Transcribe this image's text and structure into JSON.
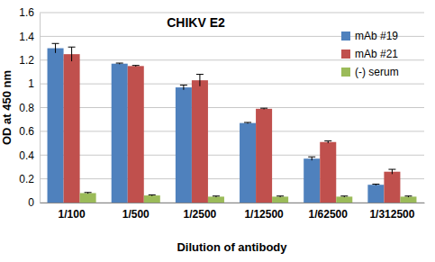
{
  "chart_data": {
    "type": "bar",
    "title": "CHIKV E2",
    "x_label": "Dilution of antibody",
    "y_label": "OD at 450 nm",
    "categories": [
      "1/100",
      "1/500",
      "1/2500",
      "1/12500",
      "1/62500",
      "1/312500"
    ],
    "series": [
      {
        "name": "mAb #19",
        "color": "#4f81bd",
        "values": [
          1.3,
          1.17,
          0.97,
          0.67,
          0.37,
          0.15
        ],
        "errors": [
          0.04,
          0.005,
          0.02,
          0.005,
          0.015,
          0.005
        ]
      },
      {
        "name": "mAb #21",
        "color": "#c0504d",
        "values": [
          1.25,
          1.15,
          1.03,
          0.79,
          0.51,
          0.26
        ],
        "errors": [
          0.06,
          0.005,
          0.05,
          0.005,
          0.01,
          0.02
        ]
      },
      {
        "name": "(-) serum",
        "color": "#9bbb59",
        "values": [
          0.08,
          0.06,
          0.05,
          0.05,
          0.05,
          0.05
        ],
        "errors": [
          0.005,
          0.005,
          0.005,
          0.005,
          0.005,
          0.005
        ]
      }
    ],
    "ylim": [
      0,
      1.6
    ],
    "yticks": [
      0,
      0.2,
      0.4,
      0.6,
      0.8,
      1,
      1.2,
      1.4,
      1.6
    ],
    "grid": true,
    "legend": "upper right"
  }
}
